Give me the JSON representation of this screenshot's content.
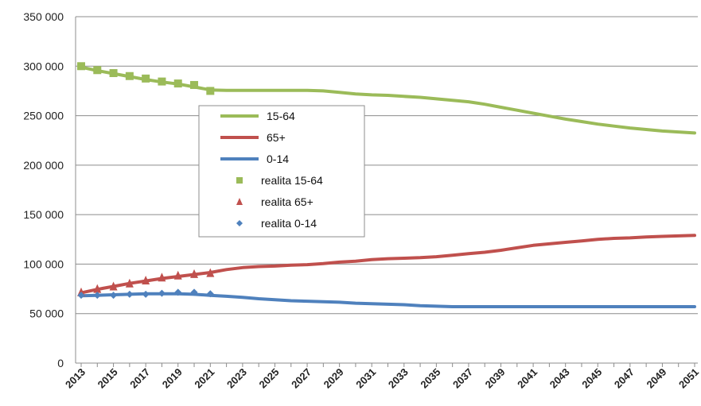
{
  "chart_data": {
    "type": "line",
    "title": "",
    "xlabel": "",
    "ylabel": "",
    "ylim": [
      0,
      350000
    ],
    "y_ticks": [
      {
        "value": 0,
        "label": "0"
      },
      {
        "value": 50000,
        "label": "50 000"
      },
      {
        "value": 100000,
        "label": "100 000"
      },
      {
        "value": 150000,
        "label": "150 000"
      },
      {
        "value": 200000,
        "label": "200 000"
      },
      {
        "value": 250000,
        "label": "250 000"
      },
      {
        "value": 300000,
        "label": "300 000"
      },
      {
        "value": 350000,
        "label": "350 000"
      }
    ],
    "x": [
      2013,
      2014,
      2015,
      2016,
      2017,
      2018,
      2019,
      2020,
      2021,
      2022,
      2023,
      2024,
      2025,
      2026,
      2027,
      2028,
      2029,
      2030,
      2031,
      2032,
      2033,
      2034,
      2035,
      2036,
      2037,
      2038,
      2039,
      2040,
      2041,
      2042,
      2043,
      2044,
      2045,
      2046,
      2047,
      2048,
      2049,
      2050,
      2051
    ],
    "x_tick_labels": [
      "2013",
      "2015",
      "2017",
      "2019",
      "2021",
      "2023",
      "2025",
      "2027",
      "2029",
      "2031",
      "2033",
      "2035",
      "2037",
      "2039",
      "2041",
      "2043",
      "2045",
      "2047",
      "2049",
      "2051"
    ],
    "grid": "horizontal",
    "legend_position": "center-left",
    "series": [
      {
        "name": "15-64",
        "kind": "line",
        "color": "#9BBB59",
        "values": [
          299000,
          295500,
          292500,
          289500,
          286500,
          284000,
          282000,
          279000,
          276000,
          275500,
          275500,
          275500,
          275500,
          275500,
          275500,
          275000,
          273500,
          272000,
          271000,
          270500,
          269500,
          268500,
          267000,
          265500,
          264000,
          261500,
          258500,
          255500,
          252500,
          249500,
          246500,
          244000,
          241500,
          239500,
          237500,
          236000,
          234500,
          233500,
          232500
        ]
      },
      {
        "name": "65+",
        "kind": "line",
        "color": "#C0504D",
        "values": [
          71000,
          74500,
          77500,
          80500,
          83000,
          85500,
          87500,
          89500,
          91500,
          94500,
          96500,
          97500,
          98000,
          99000,
          99500,
          100500,
          102000,
          103000,
          104500,
          105500,
          106000,
          106500,
          107500,
          109000,
          110500,
          112000,
          114000,
          116500,
          119000,
          120500,
          122000,
          123500,
          125000,
          126000,
          126500,
          127500,
          128000,
          128500,
          129000
        ]
      },
      {
        "name": "0-14",
        "kind": "line",
        "color": "#4F81BD",
        "values": [
          68000,
          68500,
          69000,
          69500,
          70000,
          70000,
          70000,
          69500,
          68500,
          67500,
          66500,
          65000,
          64000,
          63000,
          62500,
          62000,
          61500,
          60500,
          60000,
          59500,
          59000,
          58000,
          57500,
          57000,
          57000,
          57000,
          57000,
          57000,
          57000,
          57000,
          57000,
          57000,
          57000,
          57000,
          57000,
          57000,
          57000,
          57000,
          57000
        ]
      },
      {
        "name": "realita 15-64",
        "kind": "marker",
        "marker": "square",
        "color": "#9BBB59",
        "x": [
          2013,
          2014,
          2015,
          2016,
          2017,
          2018,
          2019,
          2020,
          2021
        ],
        "values": [
          300000,
          296000,
          293000,
          290000,
          287500,
          284500,
          282500,
          281000,
          275000
        ]
      },
      {
        "name": "realita 65+",
        "kind": "marker",
        "marker": "triangle",
        "color": "#C0504D",
        "x": [
          2013,
          2014,
          2015,
          2016,
          2017,
          2018,
          2019,
          2020,
          2021
        ],
        "values": [
          71500,
          75000,
          77500,
          80500,
          83500,
          86500,
          88500,
          90000,
          91000
        ]
      },
      {
        "name": "realita 0-14",
        "kind": "marker",
        "marker": "diamond",
        "color": "#4F81BD",
        "x": [
          2013,
          2014,
          2015,
          2016,
          2017,
          2018,
          2019,
          2020,
          2021
        ],
        "values": [
          68500,
          68500,
          68500,
          69500,
          69500,
          70500,
          71500,
          71500,
          70000
        ]
      }
    ]
  }
}
